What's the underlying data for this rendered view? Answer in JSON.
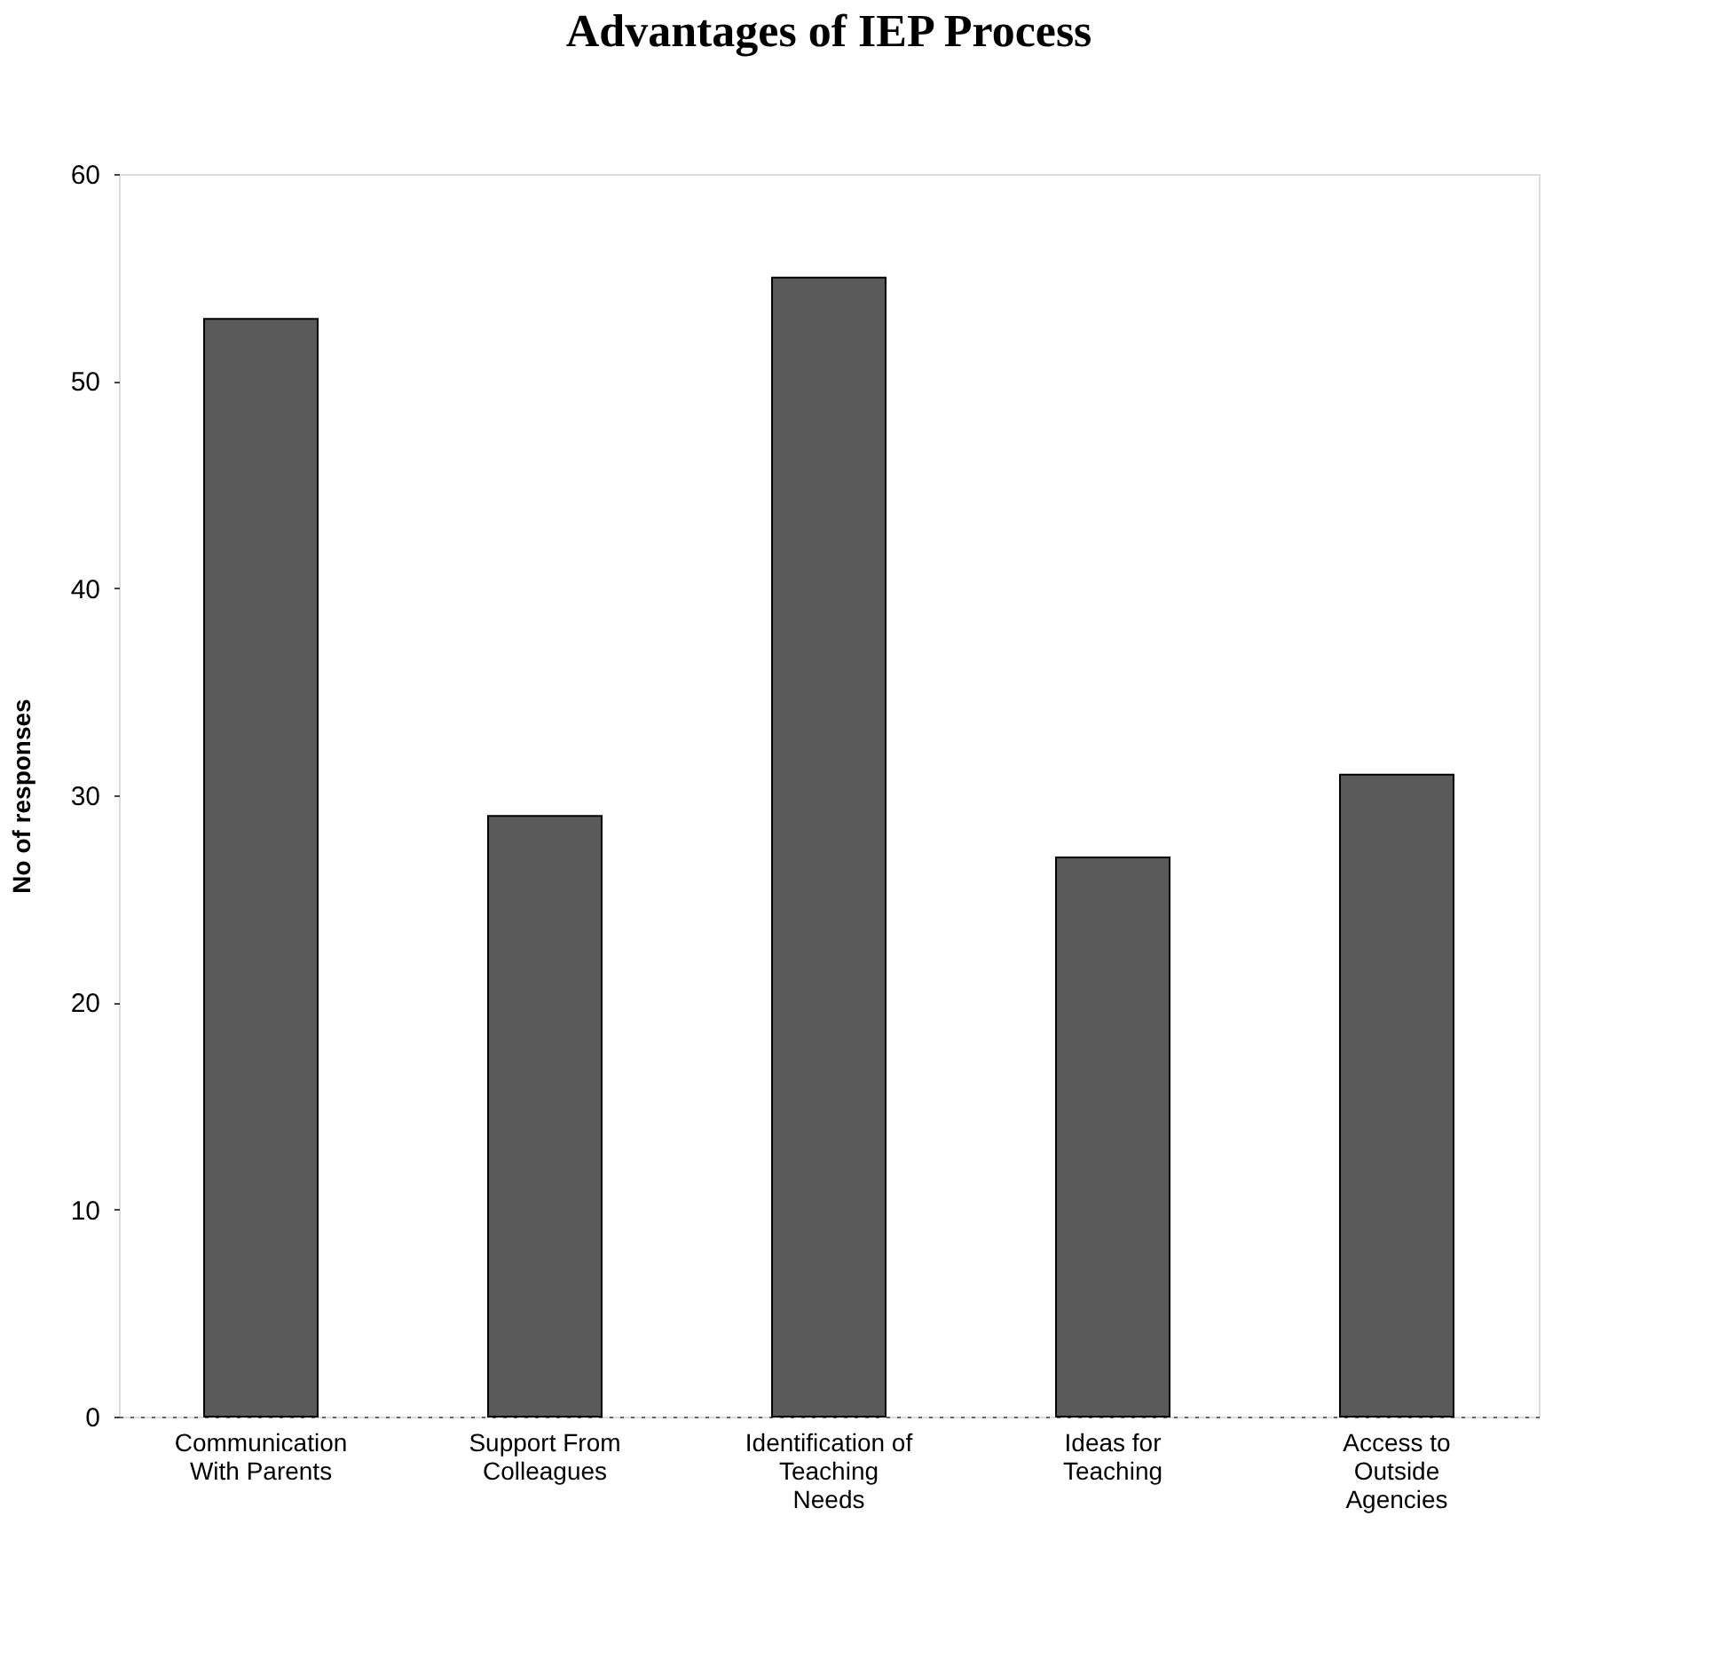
{
  "chart_data": {
    "type": "bar",
    "title": "Advantages of IEP Process",
    "ylabel": "No of responses",
    "categories": [
      [
        "Communication",
        "With Parents"
      ],
      [
        "Support From",
        "Colleagues"
      ],
      [
        "Identification of",
        "Teaching",
        "Needs"
      ],
      [
        "Ideas for",
        "Teaching"
      ],
      [
        "Access to",
        "Outside",
        "Agencies"
      ]
    ],
    "values": [
      53,
      29,
      55,
      27,
      31
    ],
    "color": "#5a5a5a",
    "ylim": [
      0,
      60
    ],
    "yticks": [
      0,
      10,
      20,
      30,
      40,
      50,
      60
    ],
    "grid": false
  }
}
